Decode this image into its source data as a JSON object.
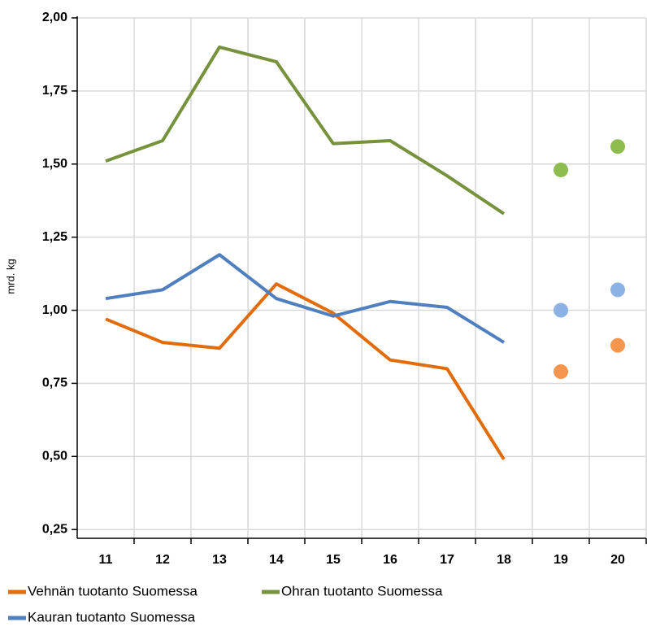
{
  "chart_data": {
    "type": "line",
    "y_label": "mrd. kg",
    "categories": [
      "11",
      "12",
      "13",
      "14",
      "15",
      "16",
      "17",
      "18",
      "19",
      "20"
    ],
    "series": [
      {
        "name": "Vehnän tuotanto Suomessa",
        "color": "#e36c0a",
        "point_color": "#f5964f",
        "values": [
          0.97,
          0.89,
          0.87,
          1.09,
          0.99,
          0.83,
          0.8,
          0.49,
          null,
          null
        ],
        "points": [
          null,
          null,
          null,
          null,
          null,
          null,
          null,
          null,
          0.79,
          0.88
        ]
      },
      {
        "name": "Ohran tuotanto Suomessa",
        "color": "#76923c",
        "point_color": "#8fbc4f",
        "values": [
          1.51,
          1.58,
          1.9,
          1.85,
          1.57,
          1.58,
          1.46,
          1.33,
          null,
          null
        ],
        "points": [
          null,
          null,
          null,
          null,
          null,
          null,
          null,
          null,
          1.48,
          1.56
        ]
      },
      {
        "name": "Kauran tuotanto Suomessa",
        "color": "#4f7fbf",
        "point_color": "#8cb1e3",
        "values": [
          1.04,
          1.07,
          1.19,
          1.04,
          0.98,
          1.03,
          1.01,
          0.89,
          null,
          null
        ],
        "points": [
          null,
          null,
          null,
          null,
          null,
          null,
          null,
          null,
          1.0,
          1.07
        ]
      }
    ],
    "ylim": [
      0.22,
      2.0
    ],
    "yticks": [
      {
        "value": 0.25,
        "label": "0,25"
      },
      {
        "value": 0.5,
        "label": "0,50"
      },
      {
        "value": 0.75,
        "label": "0,75"
      },
      {
        "value": 1.0,
        "label": "1,00"
      },
      {
        "value": 1.25,
        "label": "1,25"
      },
      {
        "value": 1.5,
        "label": "1,50"
      },
      {
        "value": 1.75,
        "label": "1,75"
      },
      {
        "value": 2.0,
        "label": "2,00"
      }
    ],
    "grid": true
  }
}
